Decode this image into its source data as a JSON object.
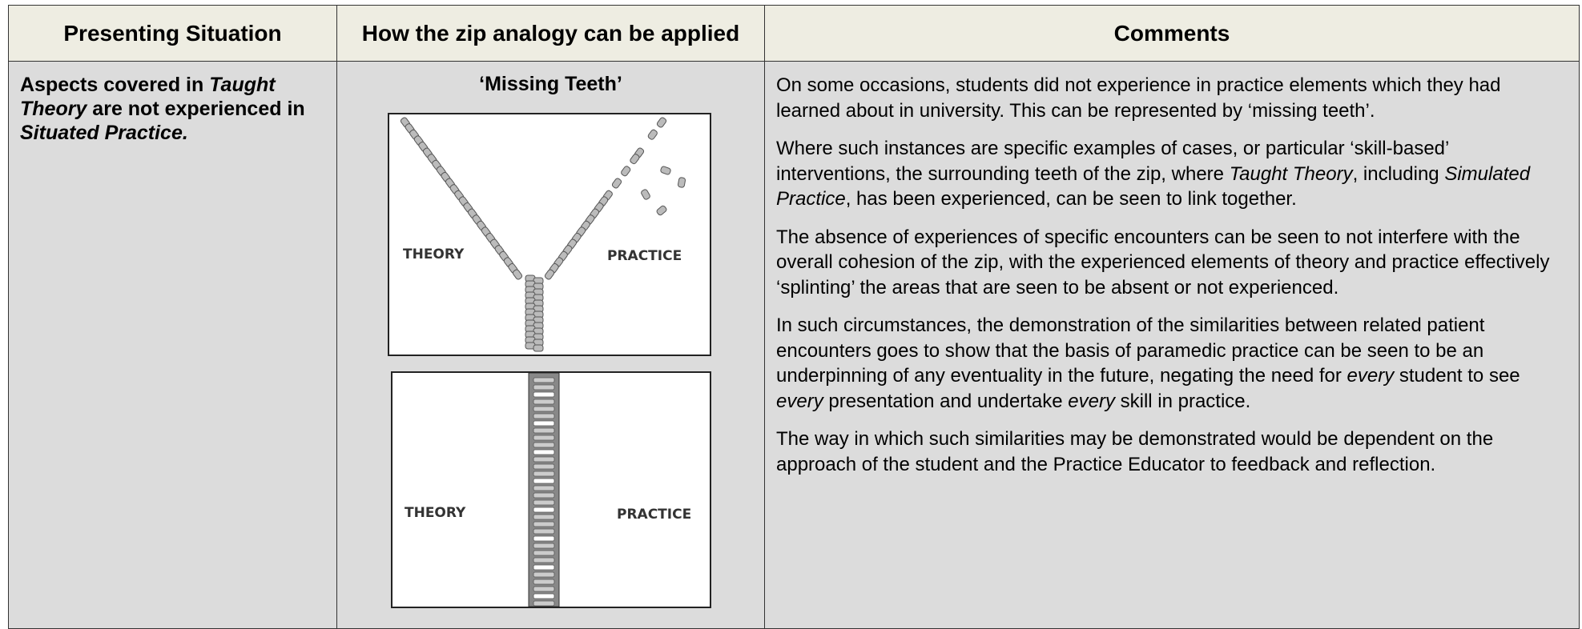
{
  "table": {
    "headers": [
      "Presenting Situation",
      "How the zip analogy can be applied",
      "Comments"
    ],
    "rows": [
      [
        [
          "Aspects covered in ",
          "Taught Theory",
          " are not experienced in ",
          "Situated Practice."
        ],
        {
          "caption": "‘Missing Teeth’",
          "figures": [
            {
              "left_label": "THEORY",
              "right_label": "PRACTICE"
            },
            {
              "left_label": "THEORY",
              "right_label": "PRACTICE"
            }
          ]
        },
        [
          [
            "On some occasions, students did not experience in practice elements which they had learned about in university. This can be represented by ‘missing teeth’."
          ],
          [
            "Where such instances are specific examples of cases, or particular ‘skill-based’ interventions, the surrounding teeth of the zip, where ",
            "Taught Theory",
            ", including ",
            "Simulated Practice",
            ", has been experienced, can be seen to link together."
          ],
          [
            "The absence of experiences of specific encounters can be seen to not interfere with the overall cohesion of the zip, with the experienced elements of theory and practice effectively ‘splinting’ the areas that are seen to be absent or not experienced."
          ],
          [
            "In such circumstances, the demonstration of the similarities between related patient encounters goes to show that the basis of paramedic practice can be seen to be an underpinning of any eventuality in the future, negating the need for ",
            "every",
            " student to see ",
            "every",
            " presentation and undertake ",
            "every",
            " skill in practice."
          ],
          [
            "The way in which such similarities may be demonstrated would be dependent on the approach of the student and the Practice Educator to feedback and reflection."
          ]
        ]
      ]
    ]
  }
}
